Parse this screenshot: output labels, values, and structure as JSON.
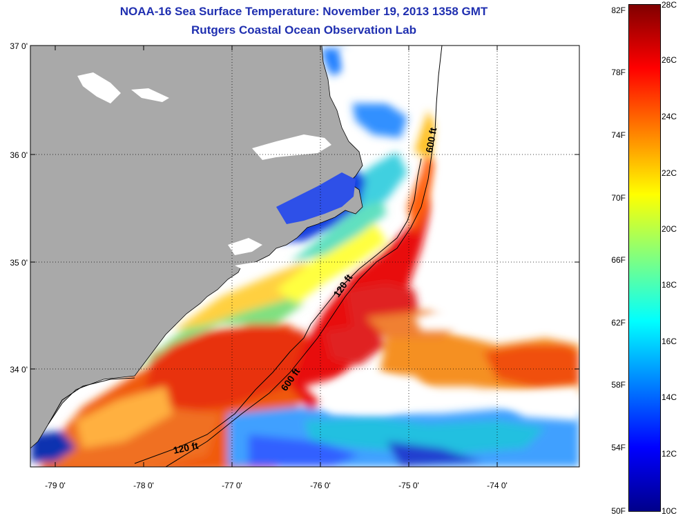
{
  "title": "NOAA-16 Sea Surface Temperature:  November 19, 2013 1358 GMT",
  "subtitle": "Rutgers Coastal Ocean Observation Lab",
  "latitude_labels": [
    "37 0'",
    "36 0'",
    "35 0'",
    "34 0'"
  ],
  "longitude_labels": [
    "-79 0'",
    "-78 0'",
    "-77 0'",
    "-76 0'",
    "-75 0'",
    "-74 0'"
  ],
  "contour_labels": [
    "600 ft",
    "120 ft",
    "600 ft",
    "120 ft"
  ],
  "colorbar": {
    "fahrenheit_labels": [
      "82F",
      "78F",
      "74F",
      "70F",
      "66F",
      "62F",
      "58F",
      "54F",
      "50F"
    ],
    "celsius_labels": [
      "28C",
      "26C",
      "24C",
      "22C",
      "20C",
      "18C",
      "16C",
      "14C",
      "12C",
      "10C"
    ],
    "colors": [
      "#00008b",
      "#0000ff",
      "#0080ff",
      "#00ffff",
      "#80ff80",
      "#ffff00",
      "#ff8000",
      "#ff0000",
      "#800000"
    ]
  },
  "colors": {
    "land": "#a9a9a9",
    "title": "#1f2fb0"
  }
}
